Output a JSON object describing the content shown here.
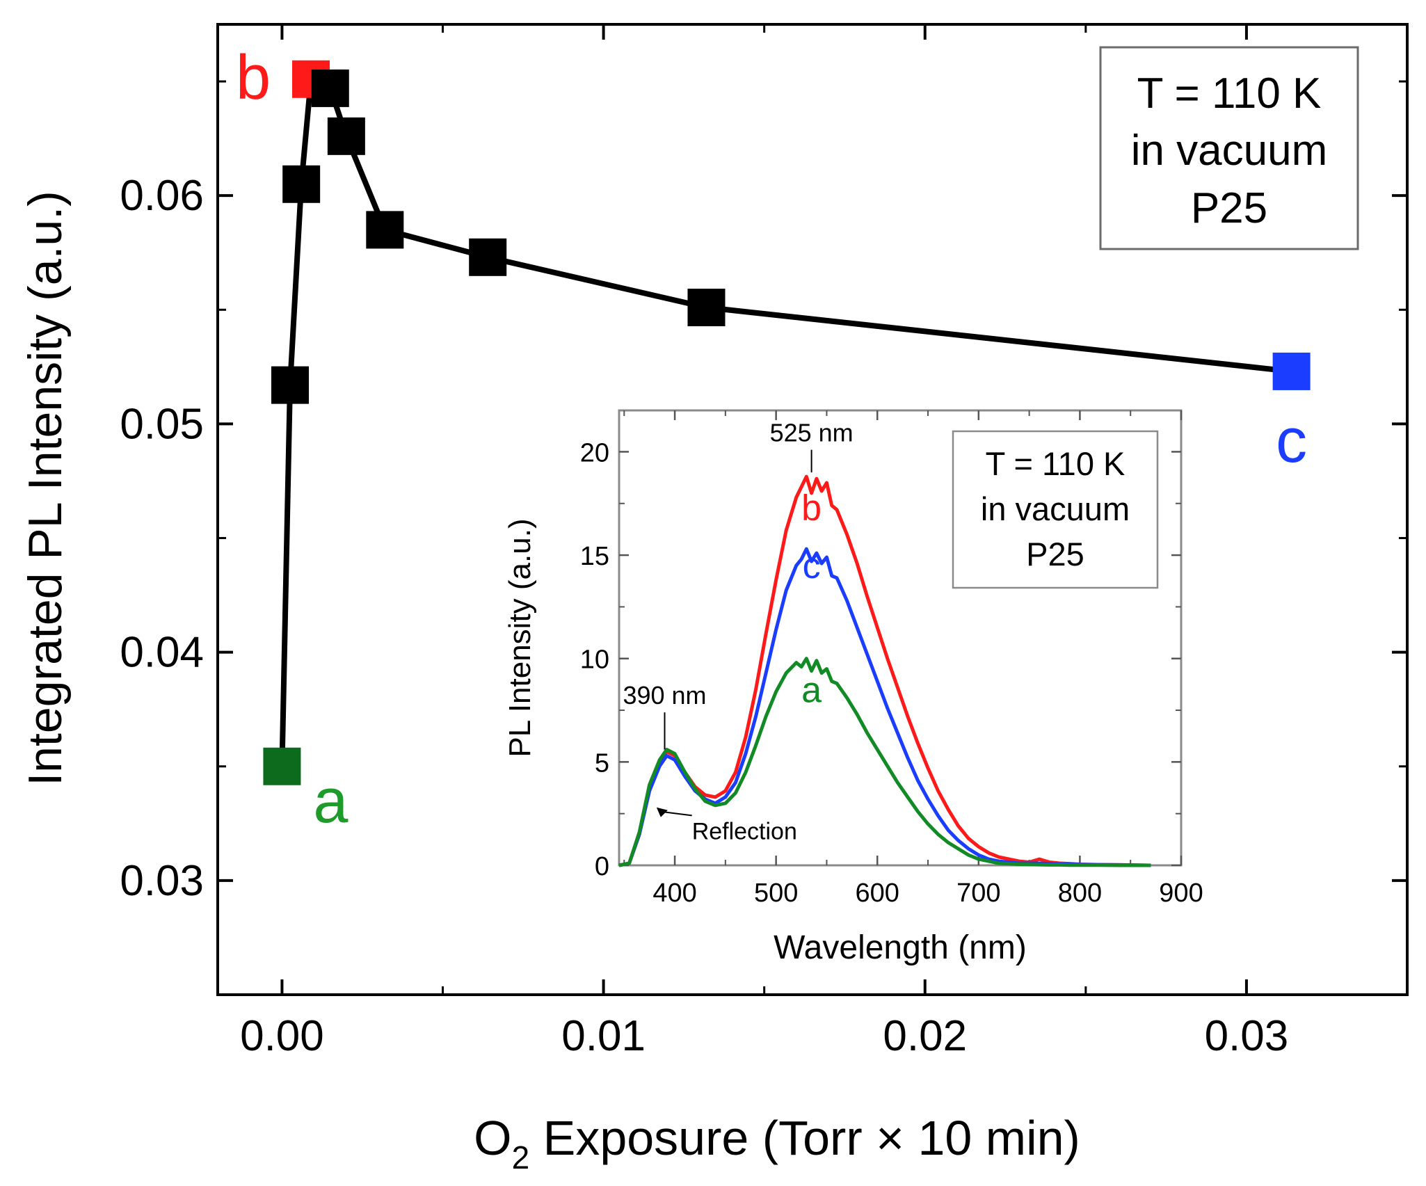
{
  "chart_data": [
    {
      "type": "scatter",
      "title": "",
      "xlabel": {
        "prefix": "O",
        "sub": "2",
        "suffix": " Exposure (Torr × 10 min)"
      },
      "ylabel": "Integrated PL Intensity (a.u.)",
      "xlim": [
        -0.002,
        0.035
      ],
      "ylim": [
        0.025,
        0.0675
      ],
      "x_ticks": [
        0.0,
        0.01,
        0.02,
        0.03
      ],
      "x_tick_labels": [
        "0.00",
        "0.01",
        "0.02",
        "0.03"
      ],
      "y_ticks": [
        0.03,
        0.04,
        0.05,
        0.06
      ],
      "y_tick_labels": [
        "0.03",
        "0.04",
        "0.05",
        "0.06"
      ],
      "legend_box": {
        "placement": "top-right",
        "lines": [
          "T = 110 K",
          "in vacuum",
          "P25"
        ]
      },
      "series": [
        {
          "name": "Integrated PL Intensity",
          "line_color": "#000000",
          "points": [
            {
              "x": 0.0,
              "y": 0.035,
              "color": "#0d6b1e",
              "label": "a",
              "label_color": "#1f9b2b",
              "label_pos": "right-below"
            },
            {
              "x": 0.00025,
              "y": 0.0517,
              "color": "#000000"
            },
            {
              "x": 0.0006,
              "y": 0.0605,
              "color": "#000000"
            },
            {
              "x": 0.0009,
              "y": 0.0651,
              "color": "#ff1a1a",
              "label": "b",
              "label_color": "#ff1a1a",
              "label_pos": "left"
            },
            {
              "x": 0.0015,
              "y": 0.0647,
              "color": "#000000"
            },
            {
              "x": 0.002,
              "y": 0.0626,
              "color": "#000000"
            },
            {
              "x": 0.0032,
              "y": 0.0585,
              "color": "#000000"
            },
            {
              "x": 0.0064,
              "y": 0.0573,
              "color": "#000000"
            },
            {
              "x": 0.0132,
              "y": 0.0551,
              "color": "#000000"
            },
            {
              "x": 0.0314,
              "y": 0.0523,
              "color": "#1a3dff",
              "label": "c",
              "label_color": "#1a3dff",
              "label_pos": "below"
            }
          ]
        }
      ]
    },
    {
      "type": "line",
      "title": "",
      "xlabel": "Wavelength (nm)",
      "ylabel": "PL Intensity (a.u.)",
      "xlim": [
        345,
        900
      ],
      "ylim": [
        0,
        22
      ],
      "x_ticks": [
        400,
        500,
        600,
        700,
        800,
        900
      ],
      "x_tick_labels": [
        "400",
        "500",
        "600",
        "700",
        "800",
        "900"
      ],
      "y_ticks": [
        0,
        5,
        10,
        15,
        20
      ],
      "y_tick_labels": [
        "0",
        "5",
        "10",
        "15",
        "20"
      ],
      "legend_box": {
        "placement": "top-right",
        "lines": [
          "T = 110 K",
          "in vacuum",
          "P25"
        ]
      },
      "annotations": [
        {
          "text": "525 nm",
          "x": 535,
          "y": 20.5,
          "pointer_to": [
            535,
            19.0
          ]
        },
        {
          "text": "390 nm",
          "x": 390,
          "y": 7.8,
          "pointer_to": [
            390,
            5.6
          ]
        },
        {
          "text": "Reflection",
          "x": 465,
          "y": 1.4,
          "pointer_to": [
            382,
            2.8
          ]
        }
      ],
      "series": [
        {
          "name": "b",
          "color": "#ff1a1a",
          "label": "b",
          "label_at": [
            535,
            17.3
          ],
          "x": [
            345,
            355,
            365,
            375,
            385,
            392,
            400,
            410,
            420,
            430,
            440,
            450,
            460,
            470,
            480,
            490,
            500,
            510,
            520,
            525,
            530,
            535,
            540,
            545,
            550,
            555,
            560,
            570,
            580,
            590,
            600,
            610,
            620,
            630,
            640,
            650,
            660,
            670,
            680,
            690,
            700,
            710,
            720,
            730,
            740,
            750,
            760,
            770,
            780,
            790,
            800,
            820,
            840,
            870
          ],
          "y": [
            0,
            0.1,
            1.5,
            3.8,
            5.0,
            5.5,
            5.3,
            4.5,
            3.8,
            3.4,
            3.3,
            3.6,
            4.5,
            6.2,
            8.5,
            11.2,
            13.8,
            16.2,
            17.8,
            18.3,
            18.8,
            18.0,
            18.7,
            18.1,
            18.5,
            17.4,
            17.2,
            16.0,
            14.6,
            13.0,
            11.5,
            10.0,
            8.6,
            7.2,
            5.9,
            4.7,
            3.6,
            2.7,
            1.9,
            1.3,
            0.9,
            0.6,
            0.4,
            0.3,
            0.2,
            0.15,
            0.3,
            0.15,
            0.1,
            0.08,
            0.05,
            0.03,
            0.02,
            0
          ]
        },
        {
          "name": "c",
          "color": "#1a3dff",
          "label": "c",
          "label_at": [
            535,
            14.5
          ],
          "x": [
            345,
            355,
            365,
            375,
            385,
            392,
            400,
            410,
            420,
            430,
            440,
            450,
            460,
            470,
            480,
            490,
            500,
            510,
            520,
            525,
            530,
            535,
            540,
            545,
            550,
            555,
            560,
            570,
            580,
            590,
            600,
            610,
            620,
            630,
            640,
            650,
            660,
            670,
            680,
            690,
            700,
            710,
            720,
            730,
            740,
            750,
            760,
            770,
            780,
            790,
            800,
            820,
            840,
            870
          ],
          "y": [
            0,
            0.1,
            1.5,
            3.6,
            4.8,
            5.3,
            5.1,
            4.3,
            3.6,
            3.2,
            3.0,
            3.3,
            4.0,
            5.4,
            7.2,
            9.3,
            11.4,
            13.3,
            14.5,
            14.8,
            15.3,
            14.7,
            15.1,
            14.6,
            14.9,
            14.0,
            13.9,
            12.8,
            11.5,
            10.2,
            8.9,
            7.6,
            6.4,
            5.2,
            4.1,
            3.2,
            2.4,
            1.7,
            1.2,
            0.8,
            0.5,
            0.3,
            0.2,
            0.15,
            0.1,
            0.1,
            0.1,
            0.08,
            0.06,
            0.05,
            0.04,
            0.03,
            0.02,
            0
          ]
        },
        {
          "name": "a",
          "color": "#128a25",
          "label": "a",
          "label_at": [
            535,
            8.5
          ],
          "x": [
            345,
            355,
            365,
            375,
            385,
            392,
            400,
            410,
            420,
            430,
            440,
            450,
            460,
            470,
            480,
            490,
            500,
            510,
            520,
            525,
            530,
            535,
            540,
            545,
            550,
            555,
            560,
            570,
            580,
            590,
            600,
            610,
            620,
            630,
            640,
            650,
            660,
            670,
            680,
            690,
            700,
            710,
            720,
            730,
            740,
            750,
            760,
            770,
            780,
            790,
            800,
            820,
            840,
            870
          ],
          "y": [
            0,
            0.1,
            1.6,
            3.9,
            5.1,
            5.6,
            5.4,
            4.5,
            3.7,
            3.1,
            2.9,
            3.0,
            3.5,
            4.5,
            5.8,
            7.2,
            8.4,
            9.3,
            9.8,
            9.6,
            10.0,
            9.4,
            9.9,
            9.3,
            9.5,
            8.9,
            8.8,
            8.1,
            7.3,
            6.4,
            5.6,
            4.8,
            4.0,
            3.3,
            2.6,
            2.0,
            1.5,
            1.1,
            0.8,
            0.5,
            0.3,
            0.2,
            0.1,
            0.08,
            0.05,
            0.04,
            0.03,
            0.02,
            0.02,
            0.01,
            0.01,
            0.01,
            0,
            0
          ]
        }
      ]
    }
  ]
}
